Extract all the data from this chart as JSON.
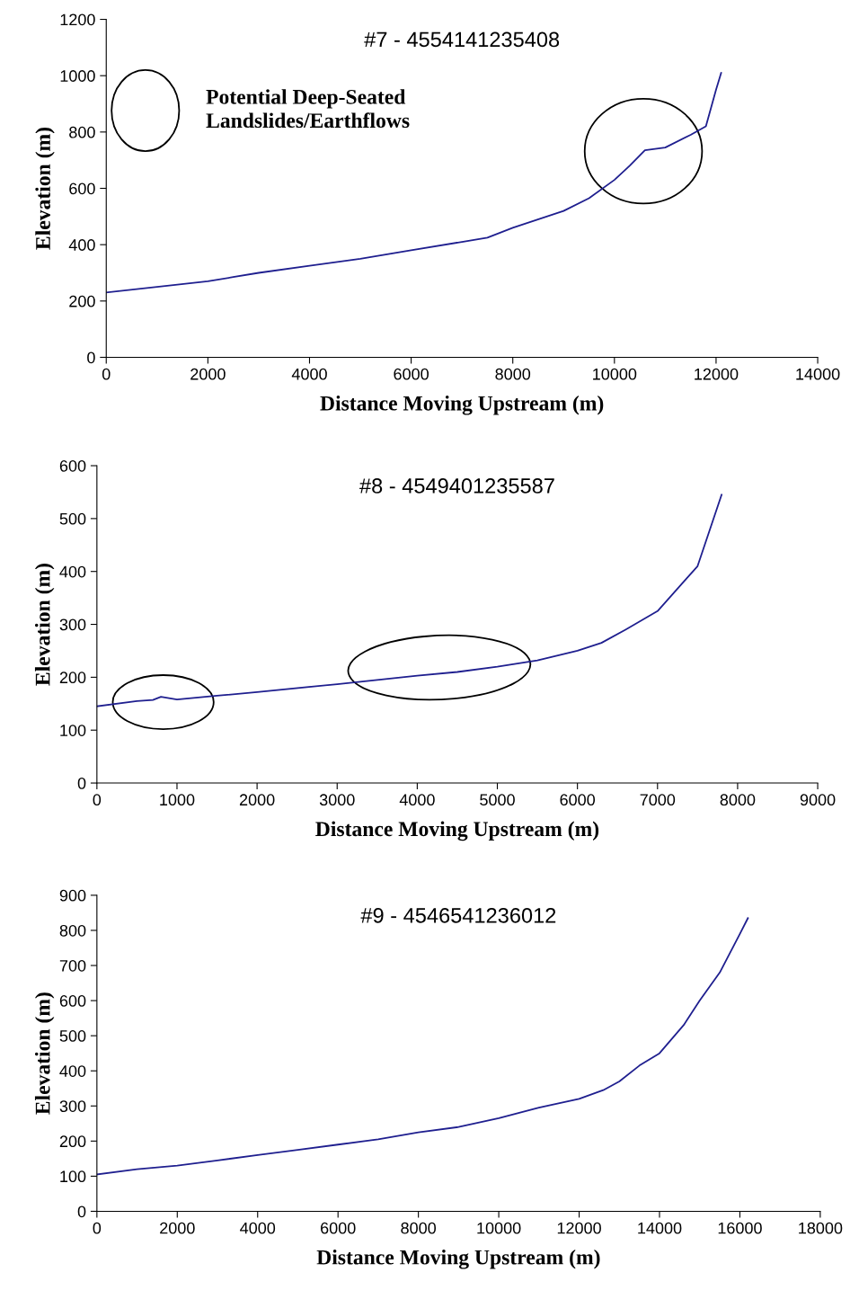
{
  "chart_data": [
    {
      "type": "line",
      "title": "#7 - 4554141235408",
      "xlabel": "Distance Moving Upstream (m)",
      "ylabel": "Elevation (m)",
      "xlim": [
        0,
        14000
      ],
      "xticks": [
        0,
        2000,
        4000,
        6000,
        8000,
        10000,
        12000,
        14000
      ],
      "ylim": [
        0,
        1200
      ],
      "yticks": [
        0,
        200,
        400,
        600,
        800,
        1000,
        1200
      ],
      "grid": false,
      "legend": false,
      "annotations": [
        "Potential Deep-Seated Landslides/Earthflows"
      ],
      "series": [
        {
          "color": "#1f1f8f",
          "x": [
            0,
            1000,
            2000,
            2500,
            3000,
            4000,
            5000,
            6000,
            7000,
            7500,
            8000,
            9000,
            9500,
            10000,
            10300,
            10600,
            11000,
            11500,
            11800,
            12000,
            12100
          ],
          "values": [
            230,
            250,
            270,
            285,
            300,
            325,
            350,
            380,
            410,
            425,
            460,
            520,
            565,
            630,
            680,
            735,
            745,
            790,
            820,
            950,
            1010
          ]
        }
      ]
    },
    {
      "type": "line",
      "title": "#8 - 4549401235587",
      "xlabel": "Distance Moving Upstream (m)",
      "ylabel": "Elevation (m)",
      "xlim": [
        0,
        9000
      ],
      "xticks": [
        0,
        1000,
        2000,
        3000,
        4000,
        5000,
        6000,
        7000,
        8000,
        9000
      ],
      "ylim": [
        0,
        600
      ],
      "yticks": [
        0,
        100,
        200,
        300,
        400,
        500,
        600
      ],
      "grid": false,
      "legend": false,
      "series": [
        {
          "color": "#1f1f8f",
          "x": [
            0,
            500,
            700,
            800,
            1000,
            1500,
            2000,
            3000,
            4000,
            4500,
            5000,
            5500,
            6000,
            6300,
            6600,
            7000,
            7500,
            7800
          ],
          "values": [
            145,
            155,
            157,
            163,
            158,
            165,
            172,
            187,
            203,
            210,
            220,
            232,
            250,
            265,
            290,
            325,
            410,
            545
          ]
        }
      ]
    },
    {
      "type": "line",
      "title": "#9 - 4546541236012",
      "xlabel": "Distance Moving Upstream (m)",
      "ylabel": "Elevation (m)",
      "xlim": [
        0,
        18000
      ],
      "xticks": [
        0,
        2000,
        4000,
        6000,
        8000,
        10000,
        12000,
        14000,
        16000,
        18000
      ],
      "ylim": [
        0,
        900
      ],
      "yticks": [
        0,
        100,
        200,
        300,
        400,
        500,
        600,
        700,
        800,
        900
      ],
      "grid": false,
      "legend": false,
      "series": [
        {
          "color": "#1f1f8f",
          "x": [
            0,
            1000,
            2000,
            3000,
            4000,
            5000,
            6000,
            7000,
            8000,
            9000,
            10000,
            11000,
            12000,
            12600,
            13000,
            13500,
            14000,
            14600,
            15000,
            15500,
            16000,
            16200
          ],
          "values": [
            105,
            120,
            130,
            145,
            160,
            175,
            190,
            205,
            225,
            240,
            265,
            295,
            320,
            345,
            370,
            415,
            450,
            530,
            600,
            680,
            790,
            835
          ]
        }
      ]
    }
  ]
}
